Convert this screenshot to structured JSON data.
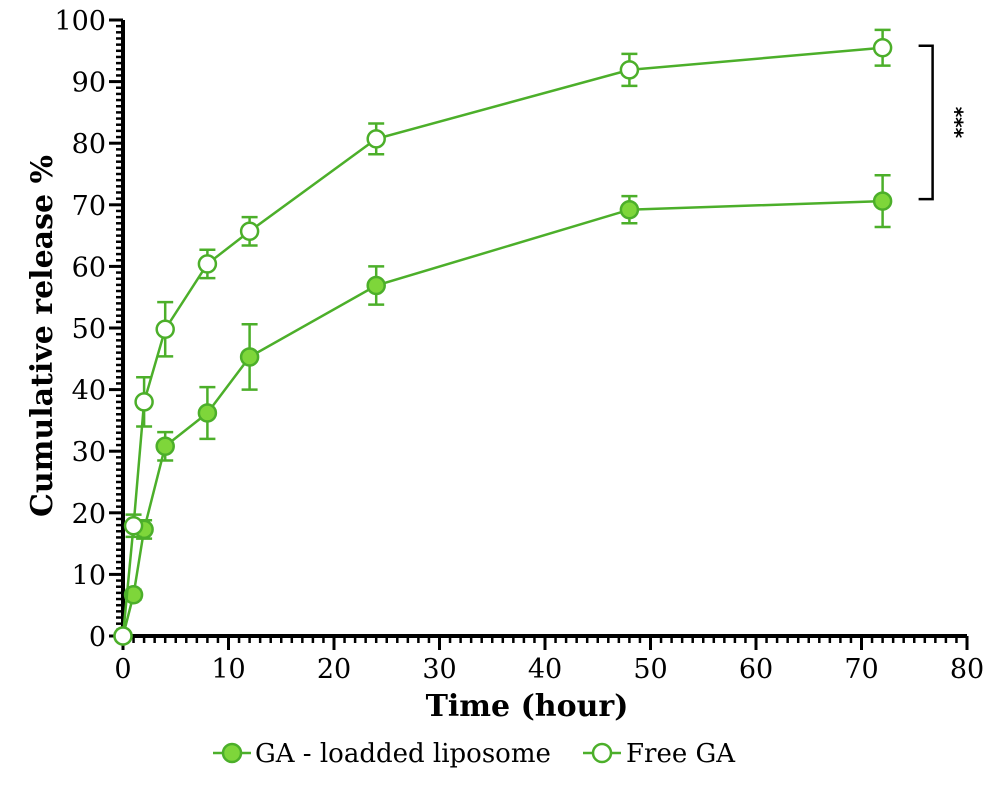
{
  "chart_data": {
    "type": "line",
    "title": "",
    "xlabel": "Time (hour)",
    "ylabel": "Cumulative release %",
    "xlim": [
      0,
      80
    ],
    "ylim": [
      0,
      100
    ],
    "x_ticks": [
      0,
      10,
      20,
      30,
      40,
      50,
      60,
      70,
      80
    ],
    "y_ticks": [
      0,
      10,
      20,
      30,
      40,
      50,
      60,
      70,
      80,
      90,
      100
    ],
    "grid": false,
    "legend_position": "bottom-center",
    "series": [
      {
        "name": "GA - loadded liposome",
        "marker": "filled-circle",
        "color": "#4caf2a",
        "fill": "#7ed63a",
        "x": [
          0,
          1,
          2,
          4,
          8,
          12,
          24,
          48,
          72
        ],
        "y": [
          0,
          6.7,
          17.3,
          30.8,
          36.2,
          45.3,
          56.9,
          69.2,
          70.6
        ],
        "err": [
          0,
          0.8,
          1.5,
          2.3,
          4.2,
          5.3,
          3.1,
          2.2,
          4.2
        ]
      },
      {
        "name": "Free GA",
        "marker": "open-circle",
        "color": "#4caf2a",
        "fill": "#ffffff",
        "x": [
          0,
          1,
          2,
          4,
          8,
          12,
          24,
          48,
          72
        ],
        "y": [
          0,
          17.9,
          38.0,
          49.8,
          60.4,
          65.7,
          80.7,
          91.9,
          95.5
        ],
        "err": [
          0,
          1.8,
          4.0,
          4.4,
          2.3,
          2.3,
          2.5,
          2.6,
          2.9
        ]
      }
    ],
    "annotation": {
      "text": "***",
      "between_y": [
        70.6,
        95.5
      ],
      "at_x": 72
    }
  }
}
